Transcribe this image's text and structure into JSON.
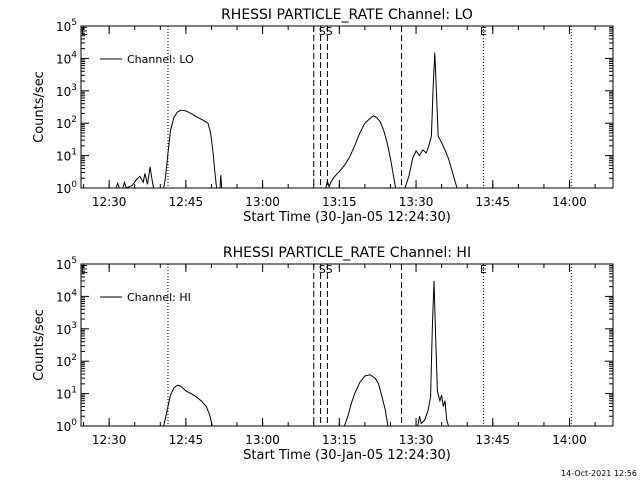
{
  "footer_timestamp": "14-Oct-2021 12:56",
  "chart_data": [
    {
      "type": "line",
      "title": "RHESSI PARTICLE_RATE Channel: LO",
      "xlabel": "Start Time (30-Jan-05 12:24:30)",
      "ylabel": "Counts/sec",
      "yscale": "log",
      "ylim": [
        1,
        100000
      ],
      "xlim": [
        "12:24:30",
        "14:08:30"
      ],
      "x_ticks": [
        "12:30",
        "12:45",
        "13:00",
        "13:15",
        "13:30",
        "13:45",
        "14:00"
      ],
      "y_ticks": [
        "10^0",
        "10^1",
        "10^2",
        "10^3",
        "10^4",
        "10^5"
      ],
      "legend": {
        "position": "top-left",
        "entries": [
          "Channel: LO"
        ]
      },
      "vlines_dotted": [
        "12:41:30",
        "13:43:10",
        "14:00:20"
      ],
      "vlines_dashed": [
        "13:10:00",
        "13:11:20",
        "13:12:40",
        "13:27:10"
      ],
      "markers": [
        {
          "text": "S",
          "x": "13:11:40"
        },
        {
          "text": "S",
          "x": "13:13:00"
        },
        {
          "text": "E",
          "x": "13:43:10"
        }
      ],
      "series": [
        {
          "name": "Channel: LO",
          "segments": [
            [
              [
                "12:31:20",
                1
              ],
              [
                "12:31:40",
                1.4
              ],
              [
                "12:32:00",
                1
              ],
              [
                "12:32:40",
                1
              ],
              [
                "12:33:00",
                1.5
              ],
              [
                "12:33:20",
                1
              ],
              [
                "12:34:30",
                1.2
              ],
              [
                "12:35:20",
                1.8
              ],
              [
                "12:36:00",
                2.3
              ],
              [
                "12:36:40",
                1.5
              ],
              [
                "12:37:00",
                2.8
              ],
              [
                "12:37:30",
                1.3
              ],
              [
                "12:38:00",
                4.5
              ],
              [
                "12:38:20",
                2
              ],
              [
                "12:38:40",
                1
              ]
            ],
            [
              [
                "12:40:40",
                1
              ],
              [
                "12:41:00",
                2
              ],
              [
                "12:41:30",
                12
              ],
              [
                "12:42:00",
                60
              ],
              [
                "12:42:40",
                150
              ],
              [
                "12:43:20",
                220
              ],
              [
                "12:44:00",
                250
              ],
              [
                "12:45:00",
                240
              ],
              [
                "12:46:00",
                200
              ],
              [
                "12:47:00",
                160
              ],
              [
                "12:48:30",
                120
              ],
              [
                "12:49:20",
                100
              ],
              [
                "12:49:50",
                50
              ],
              [
                "12:50:20",
                12
              ],
              [
                "12:50:40",
                3
              ],
              [
                "12:51:00",
                1
              ]
            ],
            [
              [
                "12:51:40",
                1
              ],
              [
                "12:51:50",
                2.5
              ],
              [
                "12:52:00",
                1
              ]
            ],
            [
              [
                "13:12:20",
                1
              ],
              [
                "13:12:40",
                1.6
              ],
              [
                "13:13:00",
                1.1
              ],
              [
                "13:13:20",
                1.5
              ],
              [
                "13:14:00",
                2.2
              ],
              [
                "13:15:00",
                3.2
              ],
              [
                "13:16:00",
                5
              ],
              [
                "13:17:00",
                9
              ],
              [
                "13:18:00",
                20
              ],
              [
                "13:19:00",
                50
              ],
              [
                "13:20:00",
                100
              ],
              [
                "13:21:00",
                140
              ],
              [
                "13:21:40",
                170
              ],
              [
                "13:22:20",
                150
              ],
              [
                "13:23:00",
                110
              ],
              [
                "13:23:40",
                60
              ],
              [
                "13:24:20",
                25
              ],
              [
                "13:25:00",
                8
              ],
              [
                "13:25:40",
                2
              ],
              [
                "13:26:00",
                1
              ]
            ],
            [
              [
                "13:27:50",
                1
              ],
              [
                "13:28:40",
                2.5
              ],
              [
                "13:29:20",
                8
              ],
              [
                "13:30:00",
                14
              ],
              [
                "13:30:40",
                10
              ],
              [
                "13:31:20",
                15
              ],
              [
                "13:32:00",
                12
              ],
              [
                "13:32:30",
                20
              ],
              [
                "13:33:00",
                40
              ],
              [
                "13:33:20",
                1200
              ],
              [
                "13:33:40",
                15000
              ],
              [
                "13:34:00",
                800
              ],
              [
                "13:34:20",
                40
              ],
              [
                "13:35:00",
                25
              ],
              [
                "13:35:40",
                15
              ],
              [
                "13:36:20",
                8
              ],
              [
                "13:37:00",
                3.5
              ],
              [
                "13:37:40",
                1.5
              ],
              [
                "13:38:00",
                1
              ]
            ]
          ]
        }
      ]
    },
    {
      "type": "line",
      "title": "RHESSI PARTICLE_RATE Channel: HI",
      "xlabel": "Start Time (30-Jan-05 12:24:30)",
      "ylabel": "Counts/sec",
      "yscale": "log",
      "ylim": [
        1,
        100000
      ],
      "xlim": [
        "12:24:30",
        "14:08:30"
      ],
      "x_ticks": [
        "12:30",
        "12:45",
        "13:00",
        "13:15",
        "13:30",
        "13:45",
        "14:00"
      ],
      "y_ticks": [
        "10^0",
        "10^1",
        "10^2",
        "10^3",
        "10^4",
        "10^5"
      ],
      "legend": {
        "position": "top-left",
        "entries": [
          "Channel: HI"
        ]
      },
      "vlines_dotted": [
        "12:41:30",
        "13:43:10",
        "14:00:20"
      ],
      "vlines_dashed": [
        "13:10:00",
        "13:11:20",
        "13:12:40",
        "13:27:10"
      ],
      "markers": [
        {
          "text": "S",
          "x": "13:11:40"
        },
        {
          "text": "S",
          "x": "13:13:00"
        },
        {
          "text": "E",
          "x": "13:43:10"
        }
      ],
      "series": [
        {
          "name": "Channel: HI",
          "segments": [
            [
              [
                "12:40:40",
                1
              ],
              [
                "12:41:20",
                3
              ],
              [
                "12:42:00",
                9
              ],
              [
                "12:42:40",
                15
              ],
              [
                "12:43:20",
                18
              ],
              [
                "12:44:00",
                17
              ],
              [
                "12:45:00",
                12
              ],
              [
                "12:46:00",
                10
              ],
              [
                "12:47:00",
                8
              ],
              [
                "12:48:00",
                6
              ],
              [
                "12:49:00",
                4
              ],
              [
                "12:49:40",
                2.2
              ],
              [
                "12:50:10",
                1
              ]
            ],
            [
              [
                "13:16:00",
                1
              ],
              [
                "13:16:40",
                2
              ],
              [
                "13:17:20",
                5
              ],
              [
                "13:18:00",
                10
              ],
              [
                "13:19:00",
                22
              ],
              [
                "13:20:00",
                35
              ],
              [
                "13:21:00",
                38
              ],
              [
                "13:22:00",
                30
              ],
              [
                "13:22:40",
                20
              ],
              [
                "13:23:20",
                8
              ],
              [
                "13:24:00",
                3
              ],
              [
                "13:24:30",
                1
              ]
            ],
            [
              [
                "13:30:20",
                1
              ],
              [
                "13:30:40",
                2
              ],
              [
                "13:31:00",
                1.2
              ],
              [
                "13:31:40",
                1.5
              ],
              [
                "13:32:20",
                3
              ],
              [
                "13:32:50",
                8
              ],
              [
                "13:33:10",
                1000
              ],
              [
                "13:33:30",
                30000
              ],
              [
                "13:33:50",
                500
              ],
              [
                "13:34:10",
                12
              ],
              [
                "13:34:40",
                6
              ],
              [
                "13:35:00",
                9
              ],
              [
                "13:35:20",
                4
              ],
              [
                "13:35:40",
                6
              ],
              [
                "13:36:00",
                1.5
              ],
              [
                "13:36:20",
                1
              ]
            ]
          ]
        }
      ]
    }
  ]
}
